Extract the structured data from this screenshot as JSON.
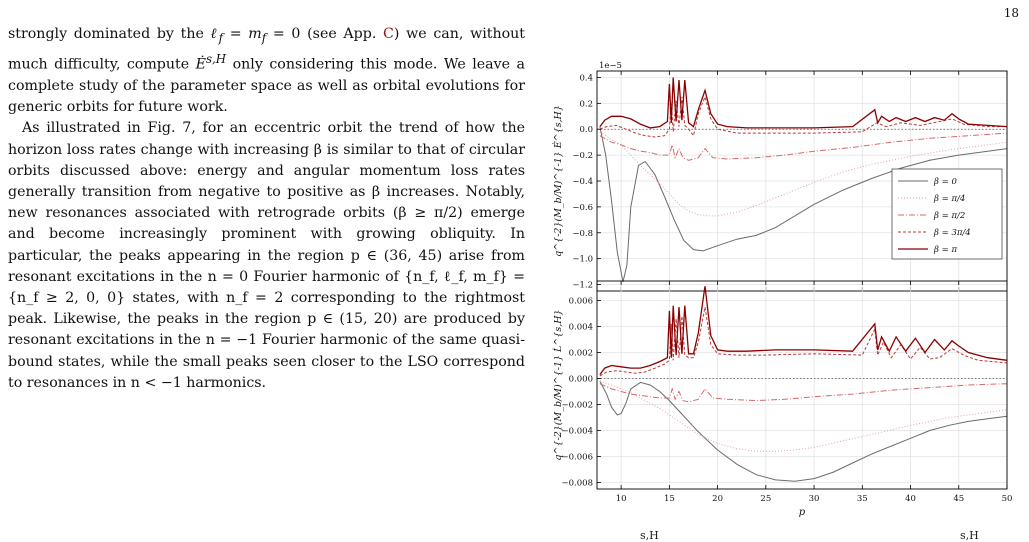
{
  "page": {
    "number": "18"
  },
  "text": {
    "p1": "strongly dominated by the ℓ_f = m_f = 0 (see App. C) we can, without much difficulty, compute Ė^{s,H} only considering this mode. We leave a complete study of the parameter space as well as orbital evolutions for generic orbits for future work.",
    "p1_parts": {
      "a": "strongly dominated by the ",
      "math1": "ℓ",
      "sub1": "f",
      "b": " = ",
      "math2": "m",
      "sub2": "f",
      "c": " = 0 (see App. ",
      "link": "C",
      "d": ") we can, without much difficulty, compute ",
      "Edot": "Ė",
      "sup": "s,H",
      "e": " only considering this mode. We leave a complete study of the parameter space as well as orbital evolutions for generic orbits for future work."
    },
    "p2": "As illustrated in Fig. 7, for an eccentric orbit the trend of how the horizon loss rates change with increasing β is similar to that of circular orbits discussed above: energy and angular momentum loss rates generally transition from negative to positive as β increases. Notably, new resonances associated with retrograde orbits (β ≥ π/2) emerge and become increasingly prominent with growing obliquity. In particular, the peaks appearing in the region p ∈ (36, 45) arise from resonant excitations in the n = 0 Fourier harmonic of {n_f, ℓ_f, m_f} = {n_f ≥ 2, 0, 0} states, with n_f = 2 corresponding to the rightmost peak. Likewise, the peaks in the region p ∈ (15, 20) are produced by resonant excitations in the n = −1 Fourier harmonic of the same quasi-bound states, while the small peaks seen closer to the LSO correspond to resonances in n < −1 harmonics."
  },
  "figure": {
    "bottom_caption_left": "s,H",
    "bottom_caption_right": "s,H"
  },
  "chart_data": [
    {
      "type": "line",
      "title": "",
      "xlabel": "",
      "ylabel": "q^{-2}(M_b/M)^{-1} Ė^{s,H}",
      "scale_label": "1e−5",
      "xlim": [
        7.5,
        50
      ],
      "ylim": [
        -1.25,
        0.45
      ],
      "yticks": [
        "0.4",
        "0.2",
        "0.0",
        "−0.2",
        "−0.4",
        "−0.6",
        "−0.8",
        "−1.0",
        "−1.2"
      ],
      "ytick_values": [
        0.4,
        0.2,
        0.0,
        -0.2,
        -0.4,
        -0.6,
        -0.8,
        -1.0,
        -1.2
      ],
      "grid": true,
      "legend_position": "right",
      "series": [
        {
          "name": "β = 0",
          "color": "#6b6b6b",
          "dash": "",
          "x": [
            7.8,
            8.4,
            9,
            9.6,
            10.2,
            10.6,
            11,
            11.8,
            12.5,
            13.5,
            14.5,
            15.5,
            16.5,
            17.5,
            18.5,
            20,
            22,
            24,
            26,
            28,
            30,
            33,
            36,
            39,
            42,
            45,
            48,
            50
          ],
          "values": [
            0.02,
            -0.2,
            -0.55,
            -0.95,
            -1.18,
            -1.05,
            -0.6,
            -0.28,
            -0.25,
            -0.35,
            -0.52,
            -0.7,
            -0.86,
            -0.93,
            -0.94,
            -0.9,
            -0.85,
            -0.82,
            -0.76,
            -0.67,
            -0.58,
            -0.47,
            -0.38,
            -0.3,
            -0.24,
            -0.2,
            -0.17,
            -0.15
          ]
        },
        {
          "name": "β = π/4",
          "color": "#e8a0a0",
          "dash": "1,2",
          "x": [
            7.8,
            9,
            10,
            11,
            12,
            13,
            14,
            15,
            16,
            17,
            18,
            19,
            20,
            22,
            24,
            26,
            28,
            30,
            33,
            36,
            40,
            44,
            48,
            50
          ],
          "values": [
            -0.02,
            -0.08,
            -0.12,
            -0.2,
            -0.28,
            -0.35,
            -0.42,
            -0.5,
            -0.58,
            -0.63,
            -0.66,
            -0.67,
            -0.67,
            -0.64,
            -0.59,
            -0.53,
            -0.47,
            -0.41,
            -0.33,
            -0.27,
            -0.21,
            -0.16,
            -0.12,
            -0.1
          ]
        },
        {
          "name": "β = π/2",
          "color": "#d46a6a",
          "dash": "6,2,1,2",
          "x": [
            7.8,
            9,
            10,
            11,
            12,
            13,
            14,
            15,
            15.3,
            15.6,
            16,
            16.4,
            17,
            18,
            18.7,
            19.5,
            21,
            24,
            27,
            30,
            34,
            38,
            42,
            46,
            50
          ],
          "values": [
            -0.05,
            -0.1,
            -0.12,
            -0.15,
            -0.17,
            -0.18,
            -0.2,
            -0.2,
            -0.12,
            -0.22,
            -0.15,
            -0.22,
            -0.24,
            -0.22,
            -0.15,
            -0.22,
            -0.23,
            -0.22,
            -0.2,
            -0.17,
            -0.14,
            -0.1,
            -0.07,
            -0.05,
            -0.03
          ]
        },
        {
          "name": "β = 3π/4",
          "color": "#b83a3a",
          "dash": "3,2",
          "x": [
            7.8,
            8.5,
            9.5,
            10.5,
            11.5,
            12.5,
            13.5,
            14.5,
            15,
            15.2,
            15.4,
            15.7,
            16,
            16.3,
            16.6,
            17,
            17.5,
            18,
            18.7,
            19.3,
            20,
            22,
            25,
            30,
            35,
            36.5,
            37.5,
            39,
            41,
            43,
            44.3,
            45.5,
            48,
            50
          ],
          "values": [
            0.0,
            0.02,
            0.03,
            0.0,
            -0.03,
            -0.05,
            -0.06,
            -0.05,
            0.0,
            0.2,
            -0.02,
            0.22,
            0.02,
            0.25,
            0.03,
            0.0,
            -0.05,
            0.12,
            0.25,
            0.08,
            0.0,
            -0.03,
            -0.03,
            -0.03,
            -0.02,
            0.05,
            0.02,
            0.05,
            0.03,
            0.06,
            0.08,
            0.04,
            0.02,
            0.02
          ]
        },
        {
          "name": "β = π",
          "color": "#8b0000",
          "dash": "",
          "x": [
            7.8,
            8.3,
            9,
            10,
            11,
            12,
            13,
            14,
            14.8,
            15,
            15.2,
            15.4,
            15.7,
            16,
            16.3,
            16.6,
            17,
            17.5,
            18,
            18.7,
            19.3,
            20,
            21,
            23,
            26,
            30,
            34,
            36.3,
            36.6,
            37,
            37.8,
            38.5,
            39.5,
            40.5,
            41.5,
            42.5,
            43.5,
            44.3,
            45,
            46,
            48,
            50
          ],
          "values": [
            0.02,
            0.07,
            0.1,
            0.1,
            0.08,
            0.04,
            0.01,
            0.02,
            0.06,
            0.35,
            0.05,
            0.4,
            0.06,
            0.38,
            0.07,
            0.38,
            0.05,
            0.02,
            0.15,
            0.3,
            0.12,
            0.04,
            0.02,
            0.01,
            0.01,
            0.01,
            0.02,
            0.15,
            0.05,
            0.1,
            0.06,
            0.09,
            0.06,
            0.09,
            0.06,
            0.09,
            0.07,
            0.12,
            0.08,
            0.04,
            0.03,
            0.02
          ]
        }
      ]
    },
    {
      "type": "line",
      "title": "",
      "xlabel": "p",
      "ylabel": "q^{-2}(M_b/M)^{-1} L̇^{s,H}",
      "xlim": [
        7.5,
        50
      ],
      "ylim": [
        -0.0085,
        0.0075
      ],
      "xticks": [
        "10",
        "15",
        "20",
        "25",
        "30",
        "35",
        "40",
        "45",
        "50"
      ],
      "xtick_values": [
        10,
        15,
        20,
        25,
        30,
        35,
        40,
        45,
        50
      ],
      "yticks": [
        "0.006",
        "0.004",
        "0.002",
        "0.000",
        "−0.002",
        "−0.004",
        "−0.006",
        "−0.008"
      ],
      "ytick_values": [
        0.006,
        0.004,
        0.002,
        0.0,
        -0.002,
        -0.004,
        -0.006,
        -0.008
      ],
      "grid": true,
      "series": [
        {
          "name": "β = 0",
          "color": "#6b6b6b",
          "dash": "",
          "x": [
            7.8,
            8.5,
            9,
            9.6,
            10,
            10.5,
            11,
            12,
            13,
            14,
            15,
            16,
            18,
            20,
            22,
            24,
            26,
            28,
            30,
            32,
            34,
            36,
            38,
            40,
            42,
            44,
            46,
            48,
            50
          ],
          "values": [
            -0.0002,
            -0.0012,
            -0.0022,
            -0.0028,
            -0.0027,
            -0.0019,
            -0.0008,
            -0.0003,
            -0.0005,
            -0.001,
            -0.0017,
            -0.0025,
            -0.0041,
            -0.0055,
            -0.0066,
            -0.0074,
            -0.0078,
            -0.0079,
            -0.0077,
            -0.0072,
            -0.0065,
            -0.0058,
            -0.0052,
            -0.0046,
            -0.004,
            -0.0036,
            -0.0033,
            -0.0031,
            -0.0029
          ]
        },
        {
          "name": "β = π/4",
          "color": "#e8a0a0",
          "dash": "1,2",
          "x": [
            7.8,
            9,
            10,
            11,
            12,
            14,
            16,
            18,
            20,
            22,
            24,
            26,
            28,
            30,
            33,
            36,
            40,
            44,
            48,
            50
          ],
          "values": [
            -0.0002,
            -0.0005,
            -0.0008,
            -0.0011,
            -0.0015,
            -0.0023,
            -0.0033,
            -0.0043,
            -0.005,
            -0.0054,
            -0.0056,
            -0.0056,
            -0.0055,
            -0.0053,
            -0.0048,
            -0.0043,
            -0.0036,
            -0.003,
            -0.0026,
            -0.0024
          ]
        },
        {
          "name": "β = π/2",
          "color": "#d46a6a",
          "dash": "6,2,1,2",
          "x": [
            7.8,
            9,
            10,
            11,
            12,
            13,
            14,
            15,
            15.3,
            15.6,
            16,
            16.4,
            17,
            18,
            18.7,
            19.5,
            21,
            24,
            27,
            30,
            34,
            38,
            42,
            46,
            50
          ],
          "values": [
            -0.0004,
            -0.0008,
            -0.001,
            -0.0012,
            -0.0013,
            -0.0014,
            -0.0015,
            -0.0015,
            -0.0008,
            -0.0016,
            -0.001,
            -0.0017,
            -0.0018,
            -0.0016,
            -0.0008,
            -0.0015,
            -0.0016,
            -0.0017,
            -0.0016,
            -0.0014,
            -0.0012,
            -0.0009,
            -0.0007,
            -0.0005,
            -0.0004
          ]
        },
        {
          "name": "β = 3π/4",
          "color": "#b83a3a",
          "dash": "3,2",
          "x": [
            7.8,
            8.5,
            9.5,
            10.5,
            11.5,
            12.5,
            13.5,
            14.5,
            15,
            15.2,
            15.4,
            15.7,
            16,
            16.3,
            16.6,
            17,
            17.5,
            18,
            18.7,
            19.3,
            20,
            22,
            25,
            30,
            35,
            36.3,
            36.6,
            37.2,
            38,
            39,
            40,
            41,
            42,
            43,
            44.3,
            45.5,
            47,
            50
          ],
          "values": [
            0.0002,
            0.0005,
            0.0006,
            0.0005,
            0.0004,
            0.0005,
            0.0008,
            0.0011,
            0.0014,
            0.0042,
            0.0014,
            0.0046,
            0.0016,
            0.0048,
            0.0018,
            0.0016,
            0.0016,
            0.0028,
            0.0055,
            0.0026,
            0.0019,
            0.0018,
            0.0018,
            0.0019,
            0.0018,
            0.0038,
            0.0018,
            0.0028,
            0.0016,
            0.0026,
            0.0015,
            0.0024,
            0.0015,
            0.0016,
            0.0023,
            0.0018,
            0.0014,
            0.0012
          ]
        },
        {
          "name": "β = π",
          "color": "#8b0000",
          "dash": "",
          "x": [
            7.8,
            8.3,
            9,
            10,
            11,
            12,
            13,
            14,
            14.8,
            15,
            15.2,
            15.4,
            15.7,
            16,
            16.3,
            16.6,
            17,
            17.5,
            18,
            18.7,
            19.3,
            20,
            21,
            23,
            26,
            30,
            34,
            36.3,
            36.6,
            37,
            37.8,
            38.5,
            39.5,
            40.5,
            41.5,
            42.5,
            43.5,
            44.3,
            45,
            46,
            48,
            50
          ],
          "values": [
            0.0003,
            0.0008,
            0.001,
            0.0009,
            0.0008,
            0.0008,
            0.001,
            0.0013,
            0.0016,
            0.0052,
            0.0016,
            0.0056,
            0.0018,
            0.0055,
            0.0019,
            0.0056,
            0.0019,
            0.0019,
            0.0035,
            0.0071,
            0.0033,
            0.0022,
            0.0021,
            0.0021,
            0.0022,
            0.0022,
            0.0021,
            0.0042,
            0.0022,
            0.0032,
            0.0021,
            0.0032,
            0.0021,
            0.0031,
            0.002,
            0.003,
            0.0022,
            0.0029,
            0.0025,
            0.002,
            0.0016,
            0.0014
          ]
        }
      ]
    }
  ]
}
